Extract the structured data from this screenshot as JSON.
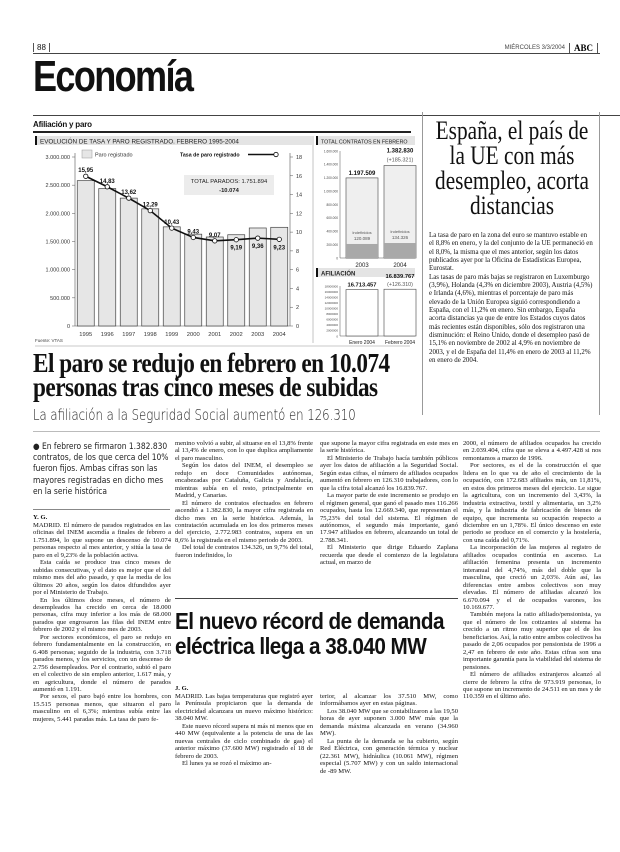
{
  "header": {
    "page_number": "88",
    "date": "MIÉRCOLES 3/3/2004",
    "logo": "ABC",
    "section": "Economía"
  },
  "graphic": {
    "title": "Afiliación y paro",
    "source": "Fuente: VTAS"
  },
  "chart_data": [
    {
      "type": "bar",
      "title": "EVOLUCIÓN DE TASA Y PARO REGISTRADO. FEBRERO 1995-2004",
      "categories": [
        "1995",
        "1996",
        "1997",
        "1998",
        "1999",
        "2000",
        "2001",
        "2002",
        "2003",
        "2004"
      ],
      "series": [
        {
          "name": "Paro registrado",
          "type": "bar",
          "axis": "left",
          "values": [
            2580000,
            2440000,
            2270000,
            2080000,
            1760000,
            1630000,
            1580000,
            1620000,
            1740000,
            1751894
          ]
        },
        {
          "name": "Tasa de paro registrado",
          "type": "line",
          "axis": "right",
          "values": [
            15.95,
            14.83,
            13.62,
            12.29,
            10.43,
            9.43,
            9.07,
            9.19,
            9.36,
            9.23
          ],
          "labels": [
            "15,95",
            "14,83",
            "13,62",
            "12,29",
            "10,43",
            "9,43",
            "9,07",
            "9,19",
            "9,36",
            "9,23"
          ]
        }
      ],
      "left_axis": {
        "ylim": [
          0,
          3000000
        ],
        "ticks": [
          "0",
          "500.000",
          "1.000.000",
          "1.500.000",
          "2.000.000",
          "2.500.000",
          "3.000.000"
        ]
      },
      "right_axis": {
        "ylim": [
          0,
          18
        ],
        "ticks": [
          "0",
          "2",
          "4",
          "6",
          "8",
          "10",
          "12",
          "14",
          "16",
          "18"
        ]
      },
      "annotation": {
        "label": "TOTAL PARADOS: 1.751.894",
        "change": "-10.074"
      },
      "legend": "top",
      "colors": {
        "bar": "#e6e6e6",
        "bar_edge": "#444444",
        "line": "#111111"
      }
    },
    {
      "type": "bar",
      "title": "TOTAL CONTRATOS EN FEBRERO",
      "categories": [
        "2003",
        "2004"
      ],
      "values": [
        1197509,
        1382830
      ],
      "value_labels": [
        "1.197.509",
        "1.382.830"
      ],
      "change_label": "(+185.321)",
      "indefinidos": {
        "label": "Indefinidos",
        "values": [
          120089,
          134326
        ],
        "value_labels": [
          "120.089",
          "134.326"
        ]
      },
      "ylim": [
        0,
        1600000
      ],
      "ticks": [
        "0",
        "200.000",
        "400.000",
        "600.000",
        "800.000",
        "1.000.000",
        "1.200.000",
        "1.400.000",
        "1.600.000"
      ]
    },
    {
      "type": "bar",
      "title": "AFILIACIÓN",
      "categories": [
        "Enero 2004",
        "Febrero 2004"
      ],
      "values": [
        16713457,
        16839767
      ],
      "value_labels": [
        "16.713.457",
        "16.839.767"
      ],
      "change_label": "(+126.310)",
      "ylim": [
        0,
        18000000
      ],
      "ticks": [
        "0",
        "2000000",
        "4000000",
        "6000000",
        "8000000",
        "10000000",
        "12000000",
        "14000000",
        "16000000",
        "18000000"
      ]
    }
  ],
  "sidebar": {
    "title": "España, el país de la UE con más desempleo, acorta distancias",
    "paragraphs": [
      "La tasa de paro en la zona del euro se mantuvo estable en el 8,8% en enero, y la del conjunto de la UE permaneció en el 8,0%, la misma que el mes anterior, según los datos publicados ayer por la Oficina de Estadísticas Europea, Eurostat.",
      "Las tasas de paro más bajas se registraron en Luxemburgo (3,9%), Holanda (4,3% en diciembre 2003), Austria (4,5%) e Irlanda (4,6%), mientras el porcentaje de paro más elevado de la Unión Europea siguió correspondiendo a España, con el 11,2% en enero. Sin embargo, España acorta distancias ya que de entre los Estados cuyos datos más recientes están disponibles, sólo dos registraron una disminución: el Reino Unido, donde el desempleo pasó de 15,1% en noviembre de 2002 al 4,9% en noviembre de 2003, y el de España del 11,4% en enero de 2003 al 11,2% en enero de 2004."
    ]
  },
  "article": {
    "headline": "El paro se redujo en febrero en 10.074 personas tras cinco meses de subidas",
    "deck": "La afiliación a la Seguridad Social aumentó en 126.310",
    "summary": "En febrero se firmaron 1.382.830 contratos, de los que cerca del 10% fueron fijos. Ambas cifras son las mayores registradas en dicho mes en la serie histórica",
    "byline": "Y. G.",
    "col1": [
      "MADRID. El número de parados registrados en las oficinas del INEM ascendía a finales de febrero a 1.751.894, lo que supone un descenso de 10.074 personas respecto al mes anterior, y sitúa la tasa de paro en el 9,23% de la población activa.",
      "Esta caída se produce tras cinco meses de subidas consecutivas, y el dato es mejor que el del mismo mes del año pasado, y que la media de los últimos 20 años, según los datos difundidos ayer por el Ministerio de Trabajo.",
      "En los últimos doce meses, el número de desempleados ha crecido en cerca de 18.000 personas, cifra muy inferior a los más de 68.000 parados que engrosaron las filas del INEM entre febrero de 2002 y el mismo mes de 2003.",
      "Por sectores económicos, el paro se redujo en febrero fundamentalmente en la construcción, en 6.408 personas; seguido de la industria, con 3.718 parados menos, y los servicios, con un descenso de 2.756 desempleados. Por el contrario, subió el paro en el colectivo de sin empleo anterior, 1.617 más, y en agricultura, donde el número de parados aumentó en 1.191.",
      "Por sexos, el paro bajó entre los hombres, con 15.515 personas menos, que situaron el paro masculino en el 6,3%; mientras subía entre las mujeres, 5.441 paradas más. La tasa de paro fe-"
    ],
    "col2": [
      "menino volvió a subir, al situarse en el 13,8% frente al 13,4% de enero, con lo que duplica ampliamente el paro masculino.",
      "Según los datos del INEM, el desempleo se redujo en doce Comunidades autónomas, encabezadas por Cataluña, Galicia y Andalucía, mientras subía en el resto, principalmente en Madrid, y Canarias.",
      "El número de contratos efectuados en febrero ascendió a 1.382.830, la mayor cifra registrada en dicho mes en la serie histórica. Además, la contratación acumulada en los dos primeros meses del ejercicio, 2.772.983 contratos, supera en un 8,6% la registrada en el mismo periodo de 2003.",
      "Del total de contratos 134.326, un 9,7% del total, fueron indefinidos, lo"
    ],
    "col3": [
      "que supone la mayor cifra registrada en este mes en la serie histórica.",
      "El Ministerio de Trabajo hacía también públicos ayer los datos de afiliación a la Seguridad Social. Según estas cifras, el número de afiliados ocupados aumentó en febrero en 126.310 trabajadores, con lo que la cifra total alcanzó los 16.839.767.",
      "La mayor parte de este incremento se produjo en el régimen general, que ganó el pasado mes 116.266 ocupados, hasta los 12.669.340, que representan el 75,23% del total del sistema. El régimen de autónomos, el segundo más importante, ganó 17.947 afiliados en febrero, alcanzando un total de 2.788.341.",
      "El Ministerio que dirige Eduardo Zaplana recuerda que desde el comienzo de la legislatura actual, en marzo de"
    ],
    "col4": [
      "2000, el número de afiliados ocupados ha crecido en 2.039.404, cifra que se eleva a 4.497.428 si nos remontamos a marzo de 1996.",
      "Por sectores, es el de la construcción el que lidera en lo que va de año el crecimiento de la ocupación, con 172.683 afiliados más, un 11,81%, en estos dos primeros meses del ejercicio. Le sigue la agricultura, con un incremento del 3,43%, la industria extractiva, textil y alimentaria, un 3,2% más, y la industria de fabricación de bienes de equipo, que incrementa su ocupación respecto a diciembre en un 1,78%. El único descenso en este periodo se produce en el comercio y la hostelería, con una caída del 0,71%.",
      "La incorporación de las mujeres al registro de afiliados ocupados continúa en ascenso. La afiliación femenina presenta un incremento interanual del 4,74%, más del doble que la masculina, que creció un 2,03%. Aún así, las diferencias entre ambos colectivos son muy elevadas. El número de afiliadas alcanzó los 6.670.094 y el de ocupados varones, los 10.169.677.",
      "También mejora la ratio afiliado/pensionista, ya que el número de los cotizantes al sistema ha crecido a un ritmo muy superior que el de los beneficiarios. Así, la ratio entre ambos colectivos ha pasado de 2,06 ocupados por pensionista de 1996 a 2,47 en febrero de este año. Estas cifras son una importante garantía para la viabilidad del sistema de pensiones.",
      "El número de afiliados extranjeros alcanzó al cierre de febrero la cifra de 973.919 personas, lo que supone un incremento de 24.511 en un mes y de 110.359 en el último año."
    ]
  },
  "article2": {
    "headline": "El nuevo récord de demanda eléctrica llega a 38.040 MW",
    "byline": "J. G.",
    "col1": [
      "MADRID. Las bajas temperaturas que registró ayer la Península propiciaron que la demanda de electricidad alcanzara un nuevo máximo histórico: 38.040 MW.",
      "Este nuevo récord supera ni más ni menos que en 440 MW (equivalente a la potencia de una de las nuevas centrales de ciclo combinado de gas) el anterior máximo (37.600 MW) registrado el 18 de febrero de 2003.",
      "El lunes ya se rozó el máximo an-"
    ],
    "col2": [
      "terior, al alcanzar los 37.510 MW, como informábamos ayer en estas páginas.",
      "Los 38.040 MW que se contabilizaron a las 19,50 horas de ayer suponen 3.000 MW más que la demanda máxima alcanzada en verano (34.960 MW).",
      "La punta de la demanda se ha cubierto, según Red Eléctrica, con generación térmica y nuclear (22.361 MW), hidráulica (10.061 MW), régimen especial (5.707 MW) y con un saldo internacional de -89 MW."
    ]
  }
}
